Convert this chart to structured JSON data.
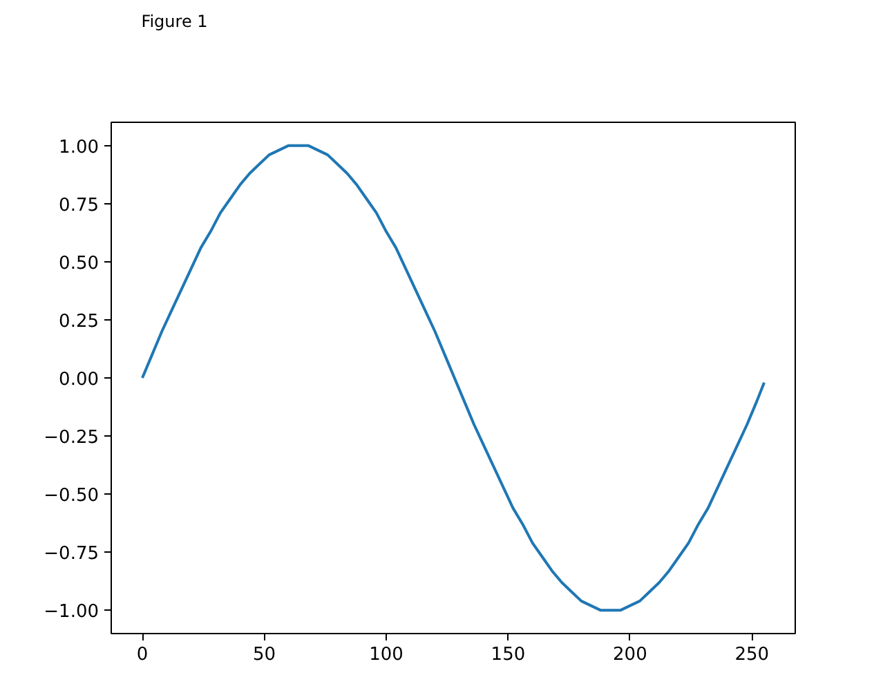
{
  "chart_data": {
    "type": "line",
    "annotations": [
      "Figure 1"
    ],
    "x": [
      0,
      4,
      8,
      12,
      16,
      20,
      24,
      28,
      32,
      36,
      40,
      44,
      48,
      52,
      56,
      60,
      64,
      68,
      72,
      76,
      80,
      84,
      88,
      92,
      96,
      100,
      104,
      108,
      112,
      116,
      120,
      124,
      128,
      132,
      136,
      140,
      144,
      148,
      152,
      156,
      160,
      164,
      168,
      172,
      176,
      180,
      184,
      188,
      192,
      196,
      200,
      204,
      208,
      212,
      216,
      220,
      224,
      228,
      232,
      236,
      240,
      244,
      248,
      252,
      255
    ],
    "series": [
      {
        "color": "#1f77b4",
        "values": [
          0,
          0.1,
          0.2,
          0.29,
          0.38,
          0.47,
          0.56,
          0.63,
          0.71,
          0.77,
          0.83,
          0.88,
          0.92,
          0.96,
          0.98,
          1.0,
          1.0,
          1.0,
          0.98,
          0.96,
          0.92,
          0.88,
          0.83,
          0.77,
          0.71,
          0.63,
          0.56,
          0.47,
          0.38,
          0.29,
          0.2,
          0.1,
          0,
          -0.1,
          -0.2,
          -0.29,
          -0.38,
          -0.47,
          -0.56,
          -0.63,
          -0.71,
          -0.77,
          -0.83,
          -0.88,
          -0.92,
          -0.96,
          -0.98,
          -1.0,
          -1.0,
          -1.0,
          -0.98,
          -0.96,
          -0.92,
          -0.88,
          -0.83,
          -0.77,
          -0.71,
          -0.63,
          -0.56,
          -0.47,
          -0.38,
          -0.29,
          -0.2,
          -0.1,
          -0.02
        ]
      }
    ],
    "xlim": [
      -12.75,
      267.75
    ],
    "ylim": [
      -1.1,
      1.1
    ],
    "xticks": [
      0,
      50,
      100,
      150,
      200,
      250
    ],
    "yticks": [
      {
        "value": -1,
        "label": "−1.00"
      },
      {
        "value": -0.75,
        "label": "−0.75"
      },
      {
        "value": -0.5,
        "label": "−0.50"
      },
      {
        "value": -0.25,
        "label": "−0.25"
      },
      {
        "value": 0,
        "label": "0.00"
      },
      {
        "value": 0.25,
        "label": "0.25"
      },
      {
        "value": 0.5,
        "label": "0.50"
      },
      {
        "value": 0.75,
        "label": "0.75"
      },
      {
        "value": 1,
        "label": "1.00"
      }
    ],
    "grid": false,
    "line_style": "solid"
  }
}
